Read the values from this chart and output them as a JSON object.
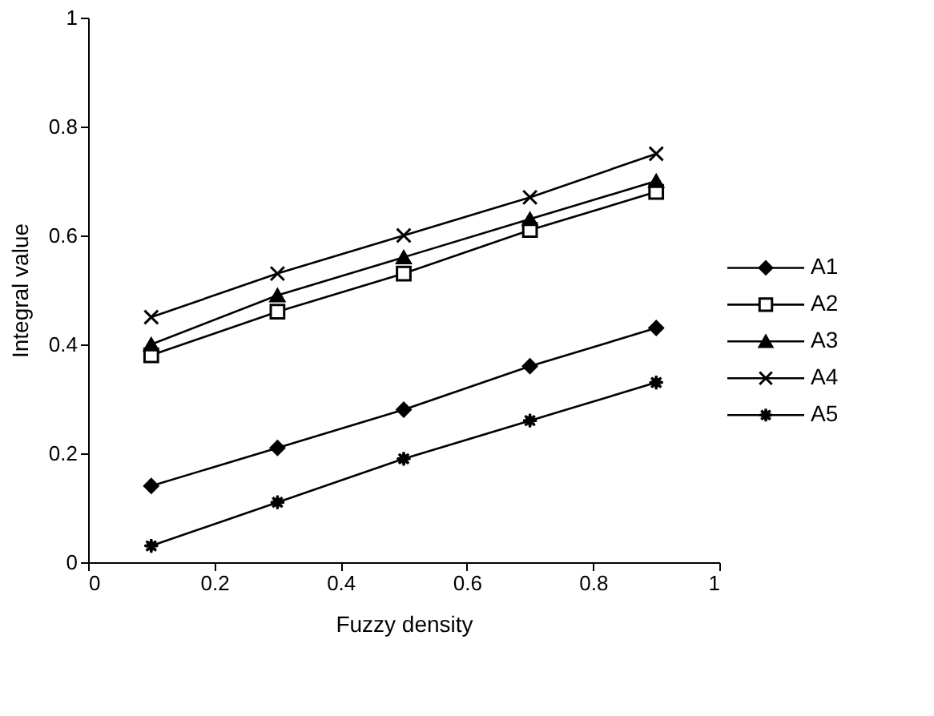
{
  "chart_data": {
    "type": "line",
    "xlabel": "Fuzzy density",
    "ylabel": "Integral value",
    "x": [
      0.1,
      0.3,
      0.5,
      0.7,
      0.9
    ],
    "series": [
      {
        "name": "A1",
        "color": "#000000",
        "marker": "diamond",
        "values": [
          0.14,
          0.21,
          0.28,
          0.36,
          0.43
        ]
      },
      {
        "name": "A2",
        "color": "#000000",
        "marker": "square",
        "values": [
          0.38,
          0.46,
          0.53,
          0.61,
          0.68
        ]
      },
      {
        "name": "A3",
        "color": "#000000",
        "marker": "triangle",
        "values": [
          0.4,
          0.49,
          0.56,
          0.63,
          0.7
        ]
      },
      {
        "name": "A4",
        "color": "#000000",
        "marker": "cross",
        "values": [
          0.45,
          0.53,
          0.6,
          0.67,
          0.75
        ]
      },
      {
        "name": "A5",
        "color": "#000000",
        "marker": "star",
        "values": [
          0.03,
          0.11,
          0.19,
          0.26,
          0.33
        ]
      }
    ],
    "xlim": [
      0,
      1
    ],
    "xticks": [
      0,
      0.2,
      0.4,
      0.6,
      0.8,
      1
    ],
    "ylim": [
      0,
      1
    ],
    "yticks": [
      0,
      0.2,
      0.4,
      0.6,
      0.8,
      1
    ],
    "grid": false,
    "legend": "right",
    "line_style": "solid"
  }
}
